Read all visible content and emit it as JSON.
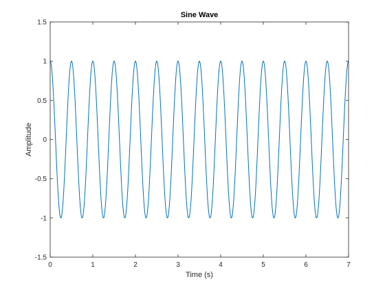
{
  "chart_data": {
    "type": "line",
    "title": "Sine Wave",
    "xlabel": "Time (s)",
    "ylabel": "Amplitude",
    "xlim": [
      0,
      7
    ],
    "ylim": [
      -1.5,
      1.5
    ],
    "xticks": [
      0,
      1,
      2,
      3,
      4,
      5,
      6,
      7
    ],
    "xtick_labels": [
      "0",
      "1",
      "2",
      "3",
      "4",
      "5",
      "6",
      "7"
    ],
    "yticks": [
      -1.5,
      -1,
      -0.5,
      0,
      0.5,
      1,
      1.5
    ],
    "ytick_labels": [
      "-1.5",
      "-1",
      "-0.5",
      "0",
      "0.5",
      "1",
      "1.5"
    ],
    "grid": false,
    "series": [
      {
        "function": "cos(2*pi*f*t)",
        "amplitude": 1,
        "frequency_hz": 2,
        "phase_rad": 0,
        "t_start": 0,
        "t_end": 7,
        "color": "#0072BD"
      }
    ]
  }
}
